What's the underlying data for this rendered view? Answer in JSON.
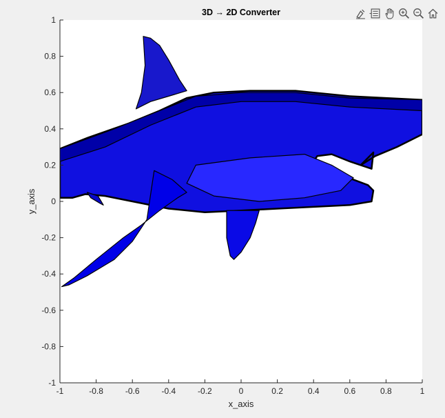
{
  "figure": {
    "title": "3D → 2D Converter",
    "xlabel": "x_axis",
    "ylabel": "y_axis",
    "colors": {
      "figure_bg": "#f0f0f0",
      "axes_bg": "#ffffff",
      "axes_line": "#262626",
      "text": "#262626",
      "model_fill": "#0000ff",
      "model_edge": "#000000"
    }
  },
  "toolbar": {
    "buttons": [
      {
        "name": "brush-icon",
        "tooltip": "Brush/Select Data"
      },
      {
        "name": "datatips-icon",
        "tooltip": "Data Tips"
      },
      {
        "name": "pan-icon",
        "tooltip": "Pan"
      },
      {
        "name": "zoom-in-icon",
        "tooltip": "Zoom In"
      },
      {
        "name": "zoom-out-icon",
        "tooltip": "Zoom Out"
      },
      {
        "name": "home-icon",
        "tooltip": "Restore View"
      }
    ]
  },
  "chart_data": {
    "type": "patch",
    "title": "3D → 2D Converter",
    "xlabel": "x_axis",
    "ylabel": "y_axis",
    "xlim": [
      -1,
      1
    ],
    "ylim": [
      -1,
      1
    ],
    "xticks": [
      -1,
      -0.8,
      -0.6,
      -0.4,
      -0.2,
      0,
      0.2,
      0.4,
      0.6,
      0.8,
      1
    ],
    "yticks": [
      -1,
      -0.8,
      -0.6,
      -0.4,
      -0.2,
      0,
      0.2,
      0.4,
      0.6,
      0.8,
      1
    ],
    "grid": false,
    "legend": "none",
    "shapes": [
      {
        "name": "body",
        "fill": "#1010e0",
        "points": [
          [
            -1.0,
            0.29
          ],
          [
            -0.85,
            0.35
          ],
          [
            -0.62,
            0.43
          ],
          [
            -0.45,
            0.5
          ],
          [
            -0.3,
            0.57
          ],
          [
            -0.15,
            0.6
          ],
          [
            0.05,
            0.61
          ],
          [
            0.3,
            0.61
          ],
          [
            0.6,
            0.58
          ],
          [
            0.8,
            0.57
          ],
          [
            1.0,
            0.56
          ],
          [
            1.0,
            0.37
          ],
          [
            0.86,
            0.3
          ],
          [
            0.74,
            0.25
          ],
          [
            0.66,
            0.2
          ],
          [
            0.73,
            0.27
          ],
          [
            0.72,
            0.18
          ],
          [
            0.6,
            0.22
          ],
          [
            0.5,
            0.26
          ],
          [
            0.42,
            0.25
          ],
          [
            0.4,
            0.22
          ],
          [
            0.5,
            0.16
          ],
          [
            0.62,
            0.12
          ],
          [
            0.7,
            0.09
          ],
          [
            0.73,
            0.06
          ],
          [
            0.72,
            0.0
          ],
          [
            0.6,
            -0.02
          ],
          [
            0.4,
            -0.03
          ],
          [
            0.2,
            -0.04
          ],
          [
            0.0,
            -0.05
          ],
          [
            -0.2,
            -0.06
          ],
          [
            -0.4,
            -0.04
          ],
          [
            -0.6,
            0.0
          ],
          [
            -0.75,
            0.03
          ],
          [
            -0.86,
            0.04
          ],
          [
            -0.93,
            0.02
          ],
          [
            -1.0,
            0.02
          ]
        ]
      },
      {
        "name": "dorsal-fin",
        "fill": "#1818cc",
        "points": [
          [
            -0.54,
            0.91
          ],
          [
            -0.5,
            0.9
          ],
          [
            -0.45,
            0.86
          ],
          [
            -0.4,
            0.78
          ],
          [
            -0.34,
            0.67
          ],
          [
            -0.3,
            0.61
          ],
          [
            -0.4,
            0.58
          ],
          [
            -0.5,
            0.55
          ],
          [
            -0.58,
            0.51
          ],
          [
            -0.55,
            0.6
          ],
          [
            -0.53,
            0.75
          ]
        ]
      },
      {
        "name": "pectoral-fin",
        "fill": "#0000e8",
        "points": [
          [
            -0.48,
            0.17
          ],
          [
            -0.38,
            0.12
          ],
          [
            -0.3,
            0.05
          ],
          [
            -0.35,
            0.02
          ],
          [
            -0.45,
            -0.05
          ],
          [
            -0.55,
            -0.13
          ],
          [
            -0.65,
            -0.2
          ],
          [
            -0.8,
            -0.32
          ],
          [
            -0.92,
            -0.42
          ],
          [
            -0.99,
            -0.47
          ],
          [
            -0.95,
            -0.46
          ],
          [
            -0.85,
            -0.41
          ],
          [
            -0.7,
            -0.32
          ],
          [
            -0.6,
            -0.22
          ],
          [
            -0.52,
            -0.1
          ]
        ]
      },
      {
        "name": "pelvic-fin",
        "fill": "#0a0ae6",
        "points": [
          [
            -0.08,
            -0.05
          ],
          [
            0.1,
            -0.05
          ],
          [
            0.08,
            -0.12
          ],
          [
            0.05,
            -0.2
          ],
          [
            0.0,
            -0.28
          ],
          [
            -0.04,
            -0.32
          ],
          [
            -0.06,
            -0.3
          ],
          [
            -0.08,
            -0.2
          ]
        ]
      },
      {
        "name": "tail-fin",
        "fill": "#0808c8",
        "points": [
          [
            -0.85,
            0.05
          ],
          [
            -0.83,
            0.02
          ],
          [
            -0.78,
            -0.01
          ],
          [
            -0.76,
            -0.02
          ],
          [
            -0.79,
            0.03
          ]
        ]
      },
      {
        "name": "back-shade",
        "fill": "#0000a8",
        "points": [
          [
            -1.0,
            0.29
          ],
          [
            -0.7,
            0.4
          ],
          [
            -0.45,
            0.5
          ],
          [
            -0.25,
            0.58
          ],
          [
            0.0,
            0.6
          ],
          [
            0.3,
            0.6
          ],
          [
            0.6,
            0.57
          ],
          [
            1.0,
            0.56
          ],
          [
            1.0,
            0.5
          ],
          [
            0.6,
            0.52
          ],
          [
            0.3,
            0.55
          ],
          [
            0.0,
            0.55
          ],
          [
            -0.25,
            0.52
          ],
          [
            -0.5,
            0.42
          ],
          [
            -0.75,
            0.3
          ],
          [
            -1.0,
            0.22
          ]
        ]
      },
      {
        "name": "belly-highlight",
        "fill": "#2828ff",
        "points": [
          [
            -0.25,
            0.2
          ],
          [
            0.05,
            0.24
          ],
          [
            0.35,
            0.26
          ],
          [
            0.5,
            0.2
          ],
          [
            0.62,
            0.13
          ],
          [
            0.55,
            0.06
          ],
          [
            0.35,
            0.02
          ],
          [
            0.1,
            0.0
          ],
          [
            -0.15,
            0.03
          ],
          [
            -0.3,
            0.1
          ]
        ]
      }
    ],
    "annotations": []
  }
}
